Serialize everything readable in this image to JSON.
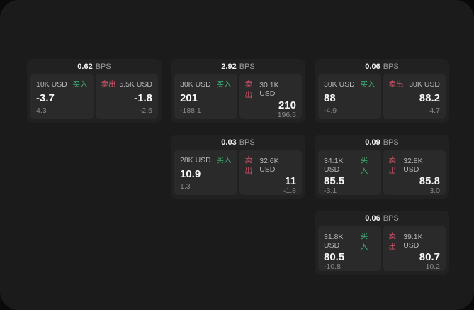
{
  "labels": {
    "buy": "买入",
    "sell": "卖出",
    "bps_unit": "BPS"
  },
  "colors": {
    "buy_accent": "#3fae73",
    "sell_accent": "#cf5268",
    "frame_bg": "#1b1b1b",
    "card_bg": "#212121",
    "panel_bg": "#2a2a2a"
  },
  "cards": [
    {
      "bps": "0.62",
      "buy": {
        "size": "10K USD",
        "price": "-3.7",
        "delta": "4.3"
      },
      "sell": {
        "size": "5.5K USD",
        "price": "-1.8",
        "delta": "-2.6"
      }
    },
    {
      "bps": "2.92",
      "buy": {
        "size": "30K USD",
        "price": "201",
        "delta": "-188.1"
      },
      "sell": {
        "size": "30.1K USD",
        "price": "210",
        "delta": "196.5"
      }
    },
    {
      "bps": "0.06",
      "buy": {
        "size": "30K USD",
        "price": "88",
        "delta": "-4.9"
      },
      "sell": {
        "size": "30K USD",
        "price": "88.2",
        "delta": "4.7"
      }
    },
    {
      "bps": "0.03",
      "buy": {
        "size": "28K USD",
        "price": "10.9",
        "delta": "1.3"
      },
      "sell": {
        "size": "32.6K USD",
        "price": "11",
        "delta": "-1.8"
      }
    },
    {
      "bps": "0.09",
      "buy": {
        "size": "34.1K USD",
        "price": "85.5",
        "delta": "-3.1"
      },
      "sell": {
        "size": "32.8K USD",
        "price": "85.8",
        "delta": "3.0"
      }
    },
    {
      "bps": "0.06",
      "buy": {
        "size": "31.8K USD",
        "price": "80.5",
        "delta": "-10.8"
      },
      "sell": {
        "size": "39.1K USD",
        "price": "80.7",
        "delta": "10.2"
      }
    }
  ]
}
